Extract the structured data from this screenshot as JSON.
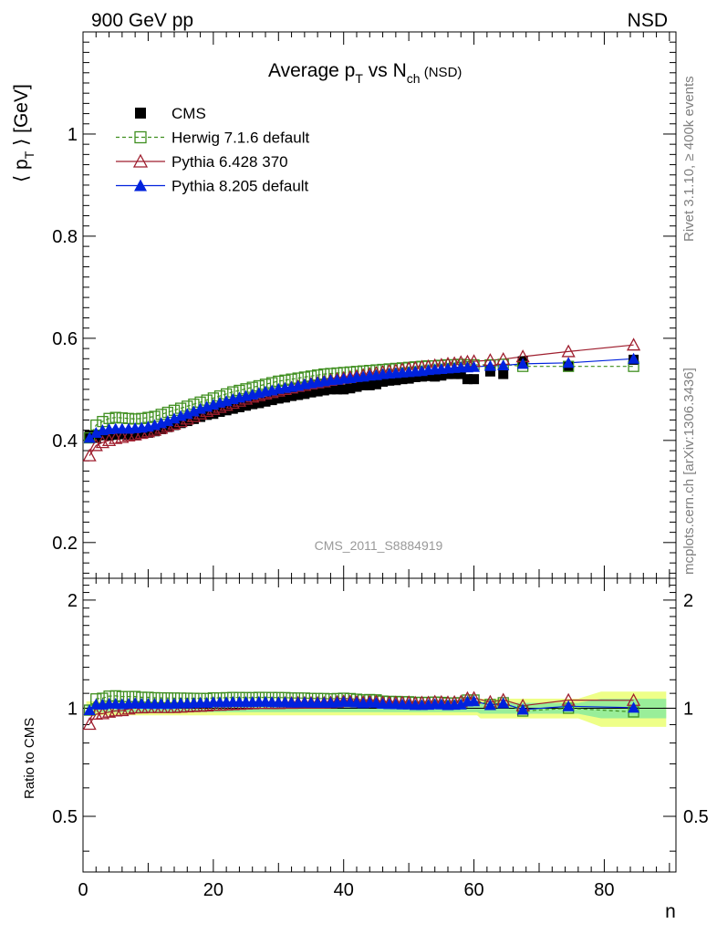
{
  "header": {
    "left": "900 GeV pp",
    "right": "NSD"
  },
  "side_text": {
    "top": "Rivet 3.1.10, ≥ 400k events",
    "bottom": "mcplots.cern.ch [arXiv:1306.3436]"
  },
  "watermark": "CMS_2011_S8884919",
  "colors": {
    "cms": "#000000",
    "herwig": "#3f8f1f",
    "pythia6": "#9f1f2f",
    "pythia8": "#0022dd",
    "band_inner": "#99ee99",
    "band_outer": "#eeff88"
  },
  "chart_data": {
    "type": "scatter",
    "title": {
      "main": "Average p",
      "sub1": "T",
      "mid": " vs N",
      "sub2": "ch",
      "suffix": " (NSD)"
    },
    "xlabel": "n",
    "ylabel": {
      "pre": "⟨ p",
      "sub": "T",
      "post": " ⟩ [GeV]"
    },
    "ratio_ylabel": "Ratio to CMS",
    "xlim": [
      0,
      91
    ],
    "ylim": [
      0.13,
      1.2
    ],
    "ratio_ylim": [
      0.35,
      2.3
    ],
    "x_ticks": [
      "0",
      "20",
      "40",
      "60",
      "80"
    ],
    "y_ticks": [
      "0.2",
      "0.4",
      "0.6",
      "0.8",
      "1"
    ],
    "ratio_ticks_left": [
      "0.5",
      "1",
      "2"
    ],
    "ratio_ticks_right": [
      "0.5",
      "1",
      "2"
    ],
    "x": [
      1,
      2,
      3,
      4,
      5,
      6,
      7,
      8,
      9,
      10,
      11,
      12,
      13,
      14,
      15,
      16,
      17,
      18,
      19,
      20,
      21,
      22,
      23,
      24,
      25,
      26,
      27,
      28,
      29,
      30,
      31,
      32,
      33,
      34,
      35,
      36,
      37,
      38,
      39,
      40,
      41,
      42,
      43,
      44,
      45,
      46,
      47,
      48,
      49,
      50,
      51,
      52,
      53,
      54,
      55,
      56,
      57,
      58,
      59,
      60,
      62.5,
      64.5,
      67.5,
      74.5,
      84.5
    ],
    "series": [
      {
        "name": "CMS",
        "values": [
          0.41,
          0.405,
          0.41,
          0.41,
          0.411,
          0.412,
          0.411,
          0.41,
          0.413,
          0.415,
          0.418,
          0.422,
          0.426,
          0.43,
          0.434,
          0.438,
          0.442,
          0.446,
          0.45,
          0.452,
          0.456,
          0.459,
          0.462,
          0.465,
          0.468,
          0.471,
          0.473,
          0.476,
          0.479,
          0.482,
          0.484,
          0.487,
          0.489,
          0.491,
          0.494,
          0.496,
          0.498,
          0.5,
          0.5,
          0.5,
          0.502,
          0.505,
          0.508,
          0.508,
          0.51,
          0.515,
          0.517,
          0.518,
          0.52,
          0.521,
          0.524,
          0.525,
          0.526,
          0.525,
          0.527,
          0.53,
          0.53,
          0.53,
          0.52,
          0.52,
          0.535,
          0.53,
          0.555,
          0.545,
          0.558
        ]
      },
      {
        "name": "Herwig 7.1.6 default",
        "values": [
          0.405,
          0.43,
          0.437,
          0.443,
          0.445,
          0.444,
          0.443,
          0.442,
          0.443,
          0.445,
          0.447,
          0.451,
          0.455,
          0.459,
          0.463,
          0.467,
          0.471,
          0.475,
          0.479,
          0.483,
          0.487,
          0.491,
          0.495,
          0.498,
          0.501,
          0.504,
          0.507,
          0.51,
          0.513,
          0.516,
          0.518,
          0.52,
          0.522,
          0.524,
          0.526,
          0.528,
          0.53,
          0.531,
          0.532,
          0.533,
          0.534,
          0.535,
          0.536,
          0.537,
          0.538,
          0.539,
          0.54,
          0.541,
          0.542,
          0.543,
          0.544,
          0.545,
          0.546,
          0.546,
          0.547,
          0.548,
          0.548,
          0.549,
          0.548,
          0.548,
          0.548,
          0.549,
          0.545,
          0.545,
          0.545
        ]
      },
      {
        "name": "Pythia 6.428 370",
        "values": [
          0.37,
          0.39,
          0.396,
          0.4,
          0.404,
          0.406,
          0.409,
          0.411,
          0.414,
          0.417,
          0.42,
          0.424,
          0.428,
          0.432,
          0.437,
          0.442,
          0.447,
          0.452,
          0.457,
          0.461,
          0.465,
          0.469,
          0.473,
          0.477,
          0.481,
          0.485,
          0.488,
          0.491,
          0.494,
          0.497,
          0.5,
          0.503,
          0.506,
          0.508,
          0.511,
          0.513,
          0.515,
          0.518,
          0.52,
          0.522,
          0.524,
          0.526,
          0.528,
          0.53,
          0.532,
          0.534,
          0.536,
          0.537,
          0.539,
          0.541,
          0.542,
          0.544,
          0.545,
          0.547,
          0.548,
          0.55,
          0.551,
          0.553,
          0.554,
          0.555,
          0.557,
          0.559,
          0.564,
          0.574,
          0.587
        ]
      },
      {
        "name": "Pythia 8.205 default",
        "values": [
          0.405,
          0.415,
          0.42,
          0.422,
          0.423,
          0.423,
          0.423,
          0.424,
          0.425,
          0.427,
          0.43,
          0.434,
          0.438,
          0.443,
          0.448,
          0.452,
          0.457,
          0.462,
          0.466,
          0.47,
          0.474,
          0.477,
          0.481,
          0.484,
          0.487,
          0.49,
          0.493,
          0.496,
          0.498,
          0.501,
          0.503,
          0.505,
          0.507,
          0.51,
          0.512,
          0.514,
          0.516,
          0.518,
          0.519,
          0.521,
          0.522,
          0.524,
          0.525,
          0.527,
          0.528,
          0.53,
          0.531,
          0.532,
          0.533,
          0.534,
          0.535,
          0.536,
          0.538,
          0.539,
          0.54,
          0.541,
          0.542,
          0.543,
          0.543,
          0.544,
          0.546,
          0.547,
          0.55,
          0.552,
          0.56
        ]
      }
    ]
  }
}
